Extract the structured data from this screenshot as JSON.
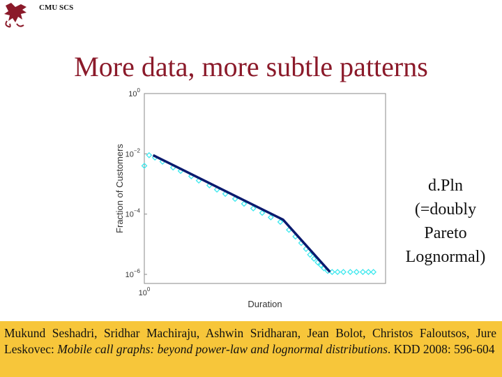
{
  "header": {
    "org": "CMU SCS"
  },
  "slide": {
    "title": "More data, more subtle patterns"
  },
  "side_note": {
    "lines": [
      "d.Pln",
      "(=doubly",
      "Pareto",
      "Lognormal)"
    ]
  },
  "citation": {
    "authors": "Mukund Seshadri, Sridhar Machiraju, Ashwin Sridharan, Jean Bolot, Christos Faloutsos, Jure Leskovec:",
    "paper_title": "Mobile call graphs: beyond power-law and lognormal distributions",
    "venue": ". KDD 2008: 596-604"
  },
  "colors": {
    "title": "#8b1a2a",
    "citation_bg": "#f7c63a",
    "data": "#3de8ee",
    "fit": "#0a1a6e"
  },
  "chart_data": {
    "type": "scatter",
    "xlabel": "Duration",
    "ylabel": "Fraction of Customers",
    "x_scale": "log",
    "y_scale": "log",
    "xlim": [
      1,
      10000
    ],
    "ylim": [
      5e-07,
      1
    ],
    "y_ticks": [
      "10^0",
      "10^-2",
      "10^-4",
      "10^-6"
    ],
    "x_ticks": [
      "10^0"
    ],
    "series": [
      {
        "kind": "scatter",
        "points": [
          [
            1,
            0.004
          ],
          [
            1.2,
            0.009
          ],
          [
            1.5,
            0.0075
          ],
          [
            2,
            0.0055
          ],
          [
            3,
            0.0035
          ],
          [
            4,
            0.0027
          ],
          [
            6,
            0.0018
          ],
          [
            8,
            0.0013
          ],
          [
            12,
            0.0009
          ],
          [
            16,
            0.00065
          ],
          [
            22,
            0.00047
          ],
          [
            32,
            0.00032
          ],
          [
            45,
            0.00022
          ],
          [
            64,
            0.000155
          ],
          [
            90,
            0.00011
          ],
          [
            125,
            7.8e-05
          ],
          [
            180,
            5.5e-05
          ],
          [
            250,
            3e-05
          ],
          [
            320,
            1.8e-05
          ],
          [
            400,
            1.1e-05
          ],
          [
            480,
            7e-06
          ],
          [
            560,
            4.5e-06
          ],
          [
            650,
            3.3e-06
          ],
          [
            750,
            2.5e-06
          ],
          [
            850,
            2e-06
          ],
          [
            950,
            1.6e-06
          ],
          [
            1100,
            1.3e-06
          ],
          [
            1300,
            1.2e-06
          ],
          [
            1600,
            1.2e-06
          ],
          [
            2000,
            1.2e-06
          ],
          [
            2600,
            1.2e-06
          ],
          [
            3300,
            1.2e-06
          ],
          [
            4200,
            1.2e-06
          ],
          [
            5200,
            1.2e-06
          ],
          [
            6300,
            1.2e-06
          ]
        ]
      },
      {
        "kind": "line",
        "points": [
          [
            1.4,
            0.009
          ],
          [
            200,
            6.5e-05
          ],
          [
            1200,
            1.2e-06
          ]
        ]
      }
    ]
  }
}
